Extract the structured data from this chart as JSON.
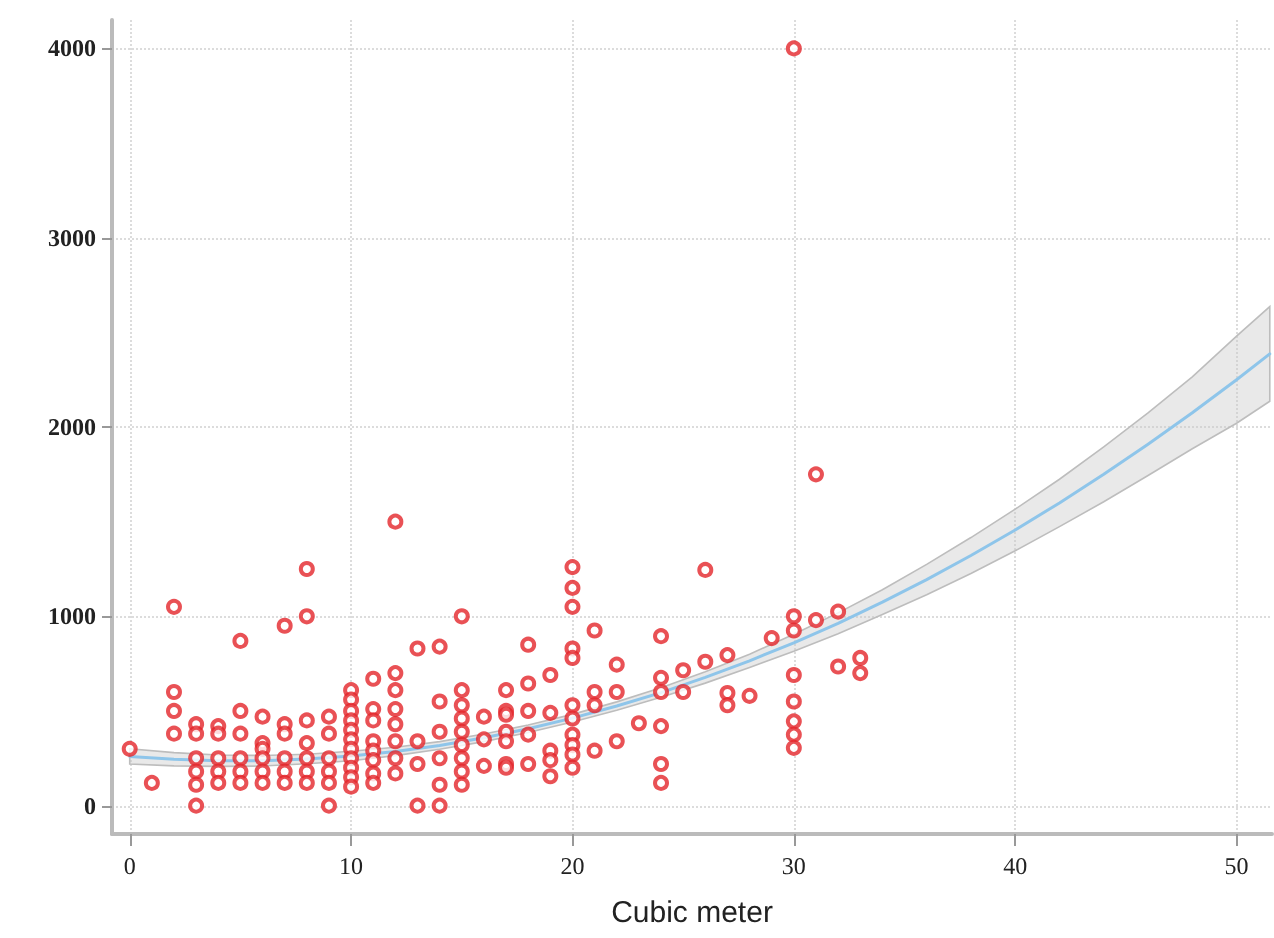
{
  "chart_data": {
    "type": "scatter",
    "xlabel": "Cubic meter",
    "xlim": [
      -0.8,
      51.6
    ],
    "ylim": [
      -150,
      4150
    ],
    "xticks": [
      0,
      10,
      20,
      30,
      40,
      50
    ],
    "yticks": [
      0,
      1000,
      2000,
      3000,
      4000
    ],
    "grid": true,
    "series": [
      {
        "color": "#e3262b",
        "marker": "circle",
        "x": [
          0,
          1,
          2,
          2,
          2,
          2,
          3,
          3,
          3,
          3,
          3,
          3,
          4,
          4,
          4,
          4,
          4,
          5,
          5,
          5,
          5,
          5,
          5,
          6,
          6,
          6,
          6,
          6,
          6,
          7,
          7,
          7,
          7,
          7,
          7,
          8,
          8,
          8,
          8,
          8,
          8,
          8,
          9,
          9,
          9,
          9,
          9,
          9,
          10,
          10,
          10,
          10,
          10,
          10,
          10,
          10,
          10,
          10,
          10,
          11,
          11,
          11,
          11,
          11,
          11,
          11,
          11,
          12,
          12,
          12,
          12,
          12,
          12,
          12,
          12,
          13,
          13,
          13,
          13,
          14,
          14,
          14,
          14,
          14,
          14,
          15,
          15,
          15,
          15,
          15,
          15,
          15,
          15,
          15,
          16,
          16,
          16,
          17,
          17,
          17,
          17,
          17,
          17,
          17,
          18,
          18,
          18,
          18,
          18,
          19,
          19,
          19,
          19,
          19,
          20,
          20,
          20,
          20,
          20,
          20,
          20,
          20,
          20,
          20,
          20,
          21,
          21,
          21,
          21,
          22,
          22,
          22,
          23,
          24,
          24,
          24,
          24,
          24,
          24,
          25,
          25,
          26,
          26,
          27,
          27,
          27,
          28,
          29,
          30,
          30,
          30,
          30,
          30,
          30,
          30,
          30,
          31,
          31,
          32,
          32,
          33,
          33
        ],
        "values": [
          300,
          120,
          1050,
          600,
          500,
          380,
          430,
          380,
          250,
          180,
          110,
          0,
          420,
          380,
          250,
          180,
          120,
          870,
          500,
          380,
          250,
          180,
          120,
          470,
          330,
          300,
          250,
          180,
          120,
          950,
          430,
          380,
          250,
          180,
          120,
          1250,
          1000,
          450,
          330,
          250,
          180,
          120,
          470,
          380,
          250,
          180,
          120,
          0,
          610,
          560,
          500,
          450,
          400,
          350,
          300,
          250,
          200,
          150,
          100,
          670,
          510,
          450,
          340,
          290,
          240,
          170,
          120,
          1500,
          700,
          610,
          510,
          430,
          340,
          250,
          170,
          830,
          340,
          220,
          0,
          840,
          550,
          390,
          250,
          110,
          0,
          1000,
          610,
          530,
          460,
          390,
          320,
          250,
          180,
          110,
          470,
          350,
          210,
          610,
          500,
          480,
          390,
          340,
          220,
          200,
          850,
          645,
          500,
          375,
          220,
          690,
          490,
          290,
          240,
          155,
          1260,
          1150,
          1050,
          830,
          780,
          530,
          460,
          375,
          320,
          270,
          200,
          925,
          600,
          530,
          290,
          745,
          600,
          340,
          435,
          895,
          675,
          600,
          420,
          220,
          120,
          715,
          600,
          1245,
          760,
          795,
          595,
          530,
          580,
          885,
          4000,
          1000,
          925,
          690,
          550,
          445,
          375,
          305,
          1750,
          980,
          1025,
          735,
          780,
          700
        ]
      },
      {
        "type": "line",
        "color": "#8ec5ea",
        "marker": "none",
        "line_style": "solid",
        "x": [
          0,
          2,
          4,
          6,
          8,
          10,
          12,
          14,
          16,
          18,
          20,
          22,
          24,
          26,
          28,
          30,
          32,
          34,
          36,
          38,
          40,
          42,
          44,
          46,
          48,
          50,
          51.5
        ],
        "values": [
          260,
          245,
          237,
          237,
          246,
          262,
          286,
          318,
          358,
          406,
          462,
          526,
          597,
          677,
          765,
          860,
          963,
          1075,
          1194,
          1321,
          1456,
          1599,
          1750,
          1909,
          2075,
          2250,
          2386
        ],
        "lower": [
          220,
          210,
          207,
          209,
          221,
          237,
          264,
          298,
          338,
          386,
          442,
          504,
          572,
          647,
          730,
          815,
          908,
          1010,
          1114,
          1226,
          1346,
          1474,
          1605,
          1744,
          1885,
          2020,
          2136
        ],
        "upper": [
          300,
          280,
          267,
          265,
          271,
          287,
          308,
          338,
          378,
          426,
          482,
          548,
          622,
          707,
          800,
          905,
          1018,
          1140,
          1274,
          1416,
          1566,
          1724,
          1895,
          2074,
          2265,
          2480,
          2636
        ]
      }
    ]
  }
}
